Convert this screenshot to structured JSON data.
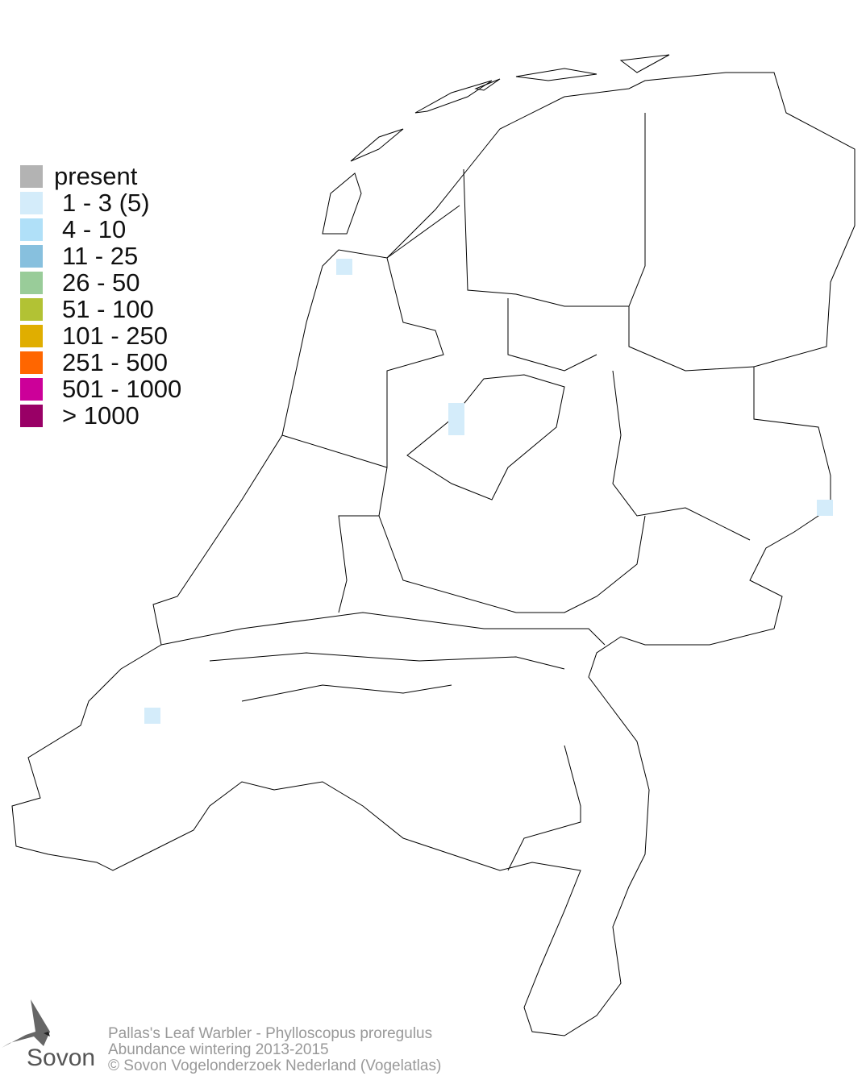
{
  "legend": {
    "items": [
      {
        "label": "present",
        "color": "#b3b3b3"
      },
      {
        "label": "1 - 3 (5)",
        "color": "#d4ecfa"
      },
      {
        "label": "4 - 10",
        "color": "#b0e0f8"
      },
      {
        "label": "11 - 25",
        "color": "#87c0de"
      },
      {
        "label": "26 - 50",
        "color": "#99cc99"
      },
      {
        "label": "51 - 100",
        "color": "#b2c234"
      },
      {
        "label": "101 - 250",
        "color": "#e0ae00"
      },
      {
        "label": "251 - 500",
        "color": "#ff6600"
      },
      {
        "label": "501 - 1000",
        "color": "#cc0099"
      },
      {
        "label": "> 1000",
        "color": "#990066"
      }
    ]
  },
  "observations": {
    "category": "1 - 3 (5)",
    "color": "#d4ecfa",
    "count": 4
  },
  "footer": {
    "line1": "Pallas's Leaf Warbler - Phylloscopus proregulus",
    "line2": "Abundance wintering 2013-2015",
    "line3": "© Sovon Vogelonderzoek Nederland (Vogelatlas)"
  },
  "logo": {
    "text": "Sovon"
  }
}
